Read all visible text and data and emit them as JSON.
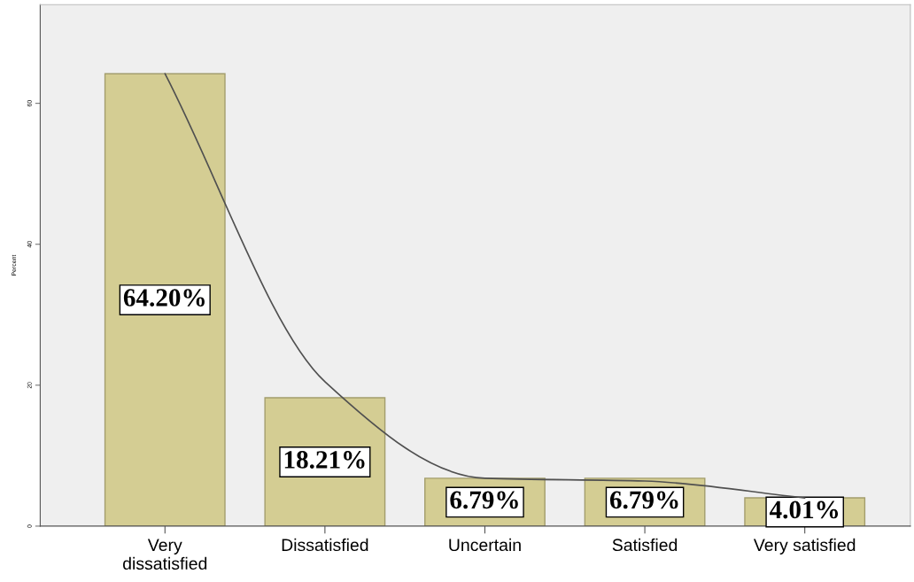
{
  "chart_data": {
    "type": "bar",
    "ylabel": "Percent",
    "categories": [
      "Very\ndissatisfied",
      "Dissatisfied",
      "Uncertain",
      "Satisfied",
      "Very satisfied"
    ],
    "series": [
      {
        "color": "#d4cd93",
        "values": [
          64.2,
          18.21,
          6.79,
          6.79,
          4.01
        ],
        "value_labels": [
          "64.20%",
          "18.21%",
          "6.79%",
          "6.79%",
          "4.01%"
        ]
      },
      {
        "type": "line",
        "color": "#505050",
        "values": [
          64.2,
          20.5,
          6.8,
          6.4,
          4.0
        ]
      }
    ],
    "ylim": [
      0,
      74
    ],
    "yticks": [
      0,
      20,
      40,
      60
    ],
    "grid": false,
    "legend": false
  }
}
